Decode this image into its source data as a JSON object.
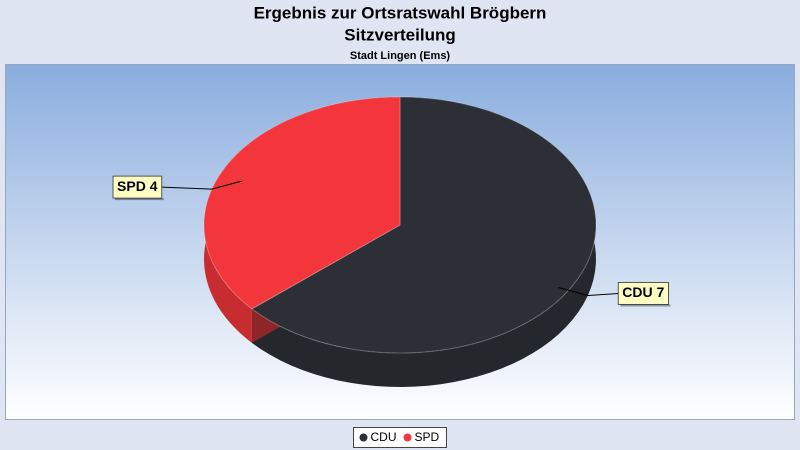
{
  "chart_data": {
    "type": "pie",
    "title": "Ergebnis zur Ortsratswahl Brögbern",
    "subtitle": "Sitzverteilung",
    "caption": "Stadt Lingen (Ems)",
    "categories": [
      "CDU",
      "SPD"
    ],
    "values": [
      7,
      4
    ],
    "value_labels": [
      "CDU 7",
      "SPD 4"
    ],
    "colors": [
      "#2c2f36",
      "#f2363b"
    ],
    "legend": "bottom"
  }
}
